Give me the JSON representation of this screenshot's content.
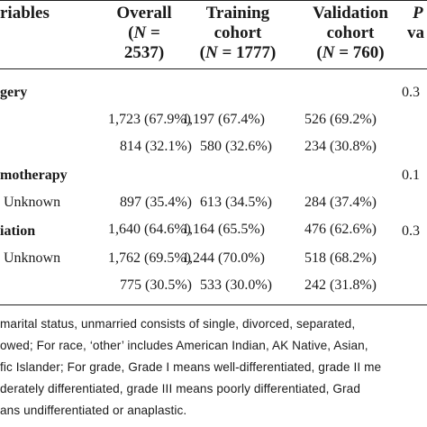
{
  "header": {
    "variables": "riables",
    "overall_l1": "Overall",
    "overall_l2": "(N =",
    "overall_l3": "2537)",
    "training_l1": "Training",
    "training_l2": "cohort",
    "training_l3": "(N = 1777)",
    "validation_l1": "Validation",
    "validation_l2": "cohort",
    "validation_l3": "(N = 760)",
    "p_l1": "P",
    "p_l2": "va"
  },
  "rows": [
    {
      "label": "gery",
      "section": true,
      "p": "0.3"
    },
    {
      "label": "",
      "overall": "1,723 (67.9%)",
      "training": "1,197 (67.4%)",
      "validation": "526 (69.2%)"
    },
    {
      "label": "",
      "overall": "814 (32.1%)",
      "training": "580 (32.6%)",
      "validation": "234 (30.8%)"
    },
    {
      "label": "motherapy",
      "section": true,
      "p": "0.1"
    },
    {
      "label": "Unknown",
      "overall": "897 (35.4%)",
      "training": "613 (34.5%)",
      "validation": "284 (37.4%)"
    },
    {
      "label": "",
      "overall": "1,640 (64.6%)",
      "training": "1,164 (65.5%)",
      "validation": "476 (62.6%)"
    },
    {
      "label": "iation",
      "section": true,
      "p": "0.3"
    },
    {
      "label": "Unknown",
      "overall": "1,762 (69.5%)",
      "training": "1,244 (70.0%)",
      "validation": "518 (68.2%)"
    },
    {
      "label": "",
      "overall": "775 (30.5%)",
      "training": "533 (30.0%)",
      "validation": "242 (31.8%)"
    }
  ],
  "footnote": [
    "marital status, unmarried consists of single, divorced, separated,",
    "owed; For race, ‘other’ includes American Indian, AK Native, Asian,",
    "fic Islander; For grade, Grade I means well-differentiated, grade II me",
    "derately differentiated, grade III means poorly differentiated, Grad",
    "ans undifferentiated or anaplastic."
  ]
}
